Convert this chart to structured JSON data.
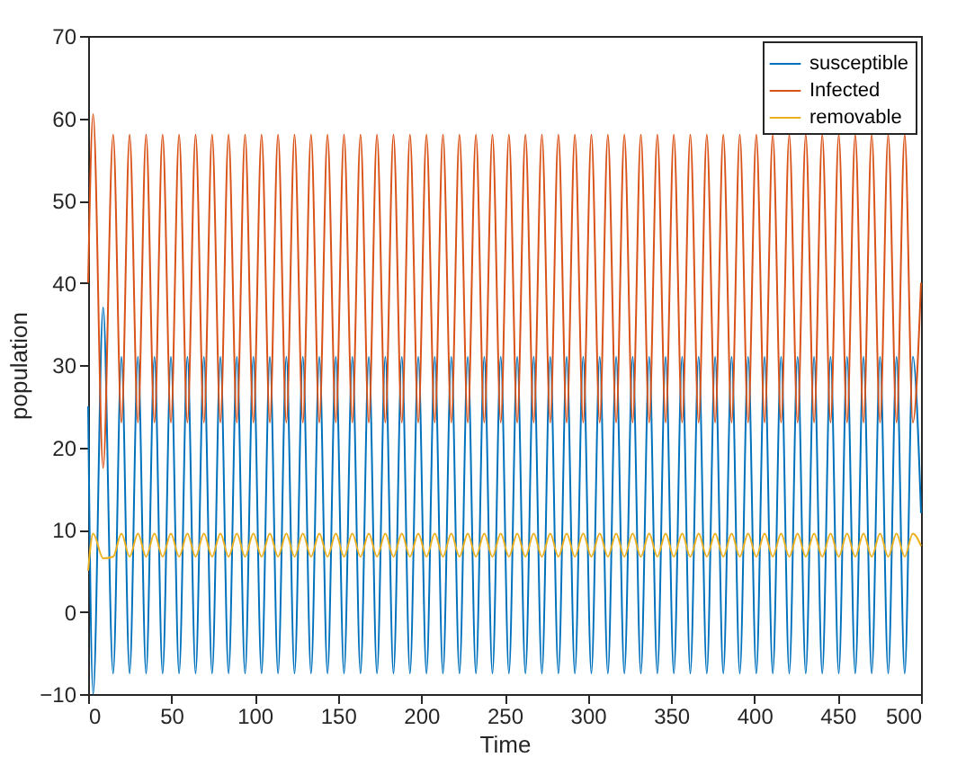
{
  "chart_data": {
    "type": "line",
    "xlabel": "Time",
    "ylabel": "population",
    "x": [
      0,
      3,
      9,
      15,
      20,
      24.9,
      29.9,
      34.8,
      39.8,
      44.7,
      49.7,
      54.6,
      59.6,
      64.5,
      69.5,
      74.4,
      79.4,
      84.3,
      89.3,
      94.2,
      99.2,
      104.1,
      109.1,
      114,
      119,
      123.9,
      128.9,
      133.8,
      138.8,
      143.7,
      148.7,
      153.6,
      158.6,
      163.5,
      168.5,
      173.4,
      178.4,
      183.3,
      188.3,
      193.2,
      198.2,
      203.1,
      208.1,
      213,
      218,
      222.9,
      227.9,
      232.8,
      237.8,
      242.7,
      247.7,
      252.6,
      257.6,
      262.5,
      267.5,
      272.4,
      277.4,
      282.3,
      287.3,
      292.2,
      297.2,
      302.1,
      307.1,
      312,
      317,
      321.9,
      326.9,
      331.8,
      336.8,
      341.7,
      346.7,
      351.6,
      356.6,
      361.5,
      366.5,
      371.4,
      376.4,
      381.3,
      386.3,
      391.2,
      396.2,
      401.1,
      406.1,
      411,
      416,
      420.9,
      425.9,
      430.8,
      435.8,
      440.7,
      445.7,
      450.6,
      455.6,
      460.5,
      465.5,
      470.4,
      475.4,
      480.3,
      485.3,
      490.2,
      495.1,
      500
    ],
    "series": [
      {
        "name": "susceptible",
        "color": "#0072bd",
        "values": [
          25,
          -10,
          37,
          -7.5,
          31,
          -7.5,
          31,
          -7.5,
          31,
          -7.5,
          31,
          -7.5,
          31,
          -7.5,
          31,
          -7.5,
          31,
          -7.5,
          31,
          -7.5,
          31,
          -7.5,
          31,
          -7.5,
          31,
          -7.5,
          31,
          -7.5,
          31,
          -7.5,
          31,
          -7.5,
          31,
          -7.5,
          31,
          -7.5,
          31,
          -7.5,
          31,
          -7.5,
          31,
          -7.5,
          31,
          -7.5,
          31,
          -7.5,
          31,
          -7.5,
          31,
          -7.5,
          31,
          -7.5,
          31,
          -7.5,
          31,
          -7.5,
          31,
          -7.5,
          31,
          -7.5,
          31,
          -7.5,
          31,
          -7.5,
          31,
          -7.5,
          31,
          -7.5,
          31,
          -7.5,
          31,
          -7.5,
          31,
          -7.5,
          31,
          -7.5,
          31,
          -7.5,
          31,
          -7.5,
          31,
          -7.5,
          31,
          -7.5,
          31,
          -7.5,
          31,
          -7.5,
          31,
          -7.5,
          31,
          -7.5,
          31,
          -7.5,
          31,
          -7.5,
          31,
          -7.5,
          31,
          -7.5,
          31,
          12
        ]
      },
      {
        "name": "Infected",
        "color": "#d95319",
        "values": [
          40,
          60.5,
          17.5,
          58,
          23,
          58,
          23,
          58,
          23,
          58,
          23,
          58,
          23,
          58,
          23,
          58,
          23,
          58,
          23,
          58,
          23,
          58,
          23,
          58,
          23,
          58,
          23,
          58,
          23,
          58,
          23,
          58,
          23,
          58,
          23,
          58,
          23,
          58,
          23,
          58,
          23,
          58,
          23,
          58,
          23,
          58,
          23,
          58,
          23,
          58,
          23,
          58,
          23,
          58,
          23,
          58,
          23,
          58,
          23,
          58,
          23,
          58,
          23,
          58,
          23,
          58,
          23,
          58,
          23,
          58,
          23,
          58,
          23,
          58,
          23,
          58,
          23,
          58,
          23,
          58,
          23,
          58,
          23,
          58,
          23,
          58,
          23,
          58,
          23,
          58,
          23,
          58,
          23,
          58,
          23,
          58,
          23,
          58,
          23,
          58,
          23,
          40
        ]
      },
      {
        "name": "removable",
        "color": "#edb120",
        "values": [
          5,
          9.5,
          6.5,
          6.7,
          9.5,
          6.7,
          9.5,
          6.7,
          9.5,
          6.7,
          9.5,
          6.7,
          9.5,
          6.7,
          9.5,
          6.7,
          9.5,
          6.7,
          9.5,
          6.7,
          9.5,
          6.7,
          9.5,
          6.7,
          9.5,
          6.7,
          9.5,
          6.7,
          9.5,
          6.7,
          9.5,
          6.7,
          9.5,
          6.7,
          9.5,
          6.7,
          9.5,
          6.7,
          9.5,
          6.7,
          9.5,
          6.7,
          9.5,
          6.7,
          9.5,
          6.7,
          9.5,
          6.7,
          9.5,
          6.7,
          9.5,
          6.7,
          9.5,
          6.7,
          9.5,
          6.7,
          9.5,
          6.7,
          9.5,
          6.7,
          9.5,
          6.7,
          9.5,
          6.7,
          9.5,
          6.7,
          9.5,
          6.7,
          9.5,
          6.7,
          9.5,
          6.7,
          9.5,
          6.7,
          9.5,
          6.7,
          9.5,
          6.7,
          9.5,
          6.7,
          9.5,
          6.7,
          9.5,
          6.7,
          9.5,
          6.7,
          9.5,
          6.7,
          9.5,
          6.7,
          9.5,
          6.7,
          9.5,
          6.7,
          9.5,
          6.7,
          9.5,
          6.7,
          9.5,
          6.7,
          9.5,
          8
        ]
      }
    ],
    "xlim": [
      0,
      500
    ],
    "xticks": [
      0,
      50,
      100,
      150,
      200,
      250,
      300,
      350,
      400,
      450,
      500
    ],
    "ylim": [
      -10,
      70
    ],
    "yticks": [
      -10,
      0,
      10,
      20,
      30,
      40,
      50,
      60,
      70
    ],
    "legend": "top right",
    "marker": "none",
    "line_style": "solid"
  }
}
